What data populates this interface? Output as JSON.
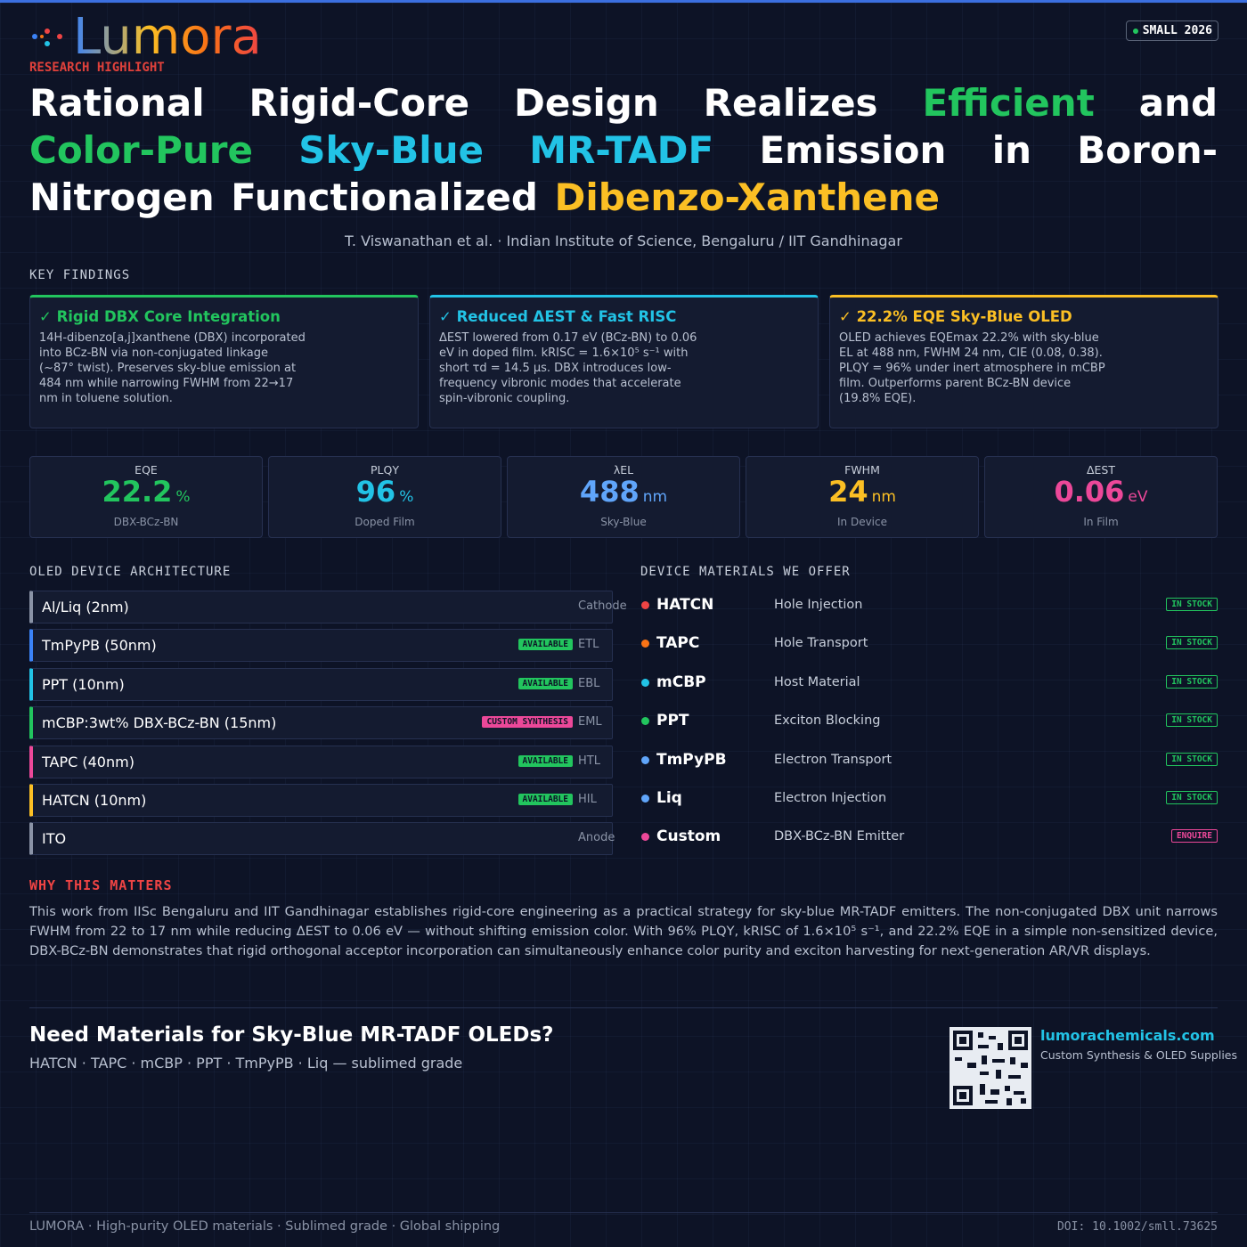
{
  "header": {
    "logo": "Lumora",
    "tagline": "RESEARCH HIGHLIGHT",
    "badge": "SMALL 2026"
  },
  "title": {
    "parts": [
      {
        "text": "Rational Rigid-Core Design Realizes",
        "color": "#ffffff"
      },
      {
        "text": "Efficient",
        "color": "#22c55e"
      },
      {
        "text": "and",
        "color": "#ffffff"
      },
      {
        "text": "Color-Pure",
        "color": "#22c55e"
      },
      {
        "text": "Sky-Blue MR-TADF",
        "color": "#22c3e6"
      },
      {
        "text": "Emission in Boron-Nitrogen Functionalized",
        "color": "#ffffff"
      },
      {
        "text": "Dibenzo-Xanthene",
        "color": "#fbbf24"
      }
    ]
  },
  "authors": "T. Viswanathan et al. · Indian Institute of Science, Bengaluru / IIT Gandhinagar",
  "key_findings": {
    "label": "KEY FINDINGS",
    "cards": [
      {
        "title": "✓ Rigid DBX Core Integration",
        "color": "#22c55e",
        "body": "14H-dibenzo[a,j]xanthene (DBX) incorporated into BCz-BN via non-conjugated linkage (~87° twist). Preserves sky-blue emission at 484 nm while narrowing FWHM from 22→17 nm in toluene solution."
      },
      {
        "title": "✓ Reduced ΔEST & Fast RISC",
        "color": "#22c3e6",
        "body": "ΔEST lowered from 0.17 eV (BCz-BN) to 0.06 eV in doped film. kRISC = 1.6×10⁵ s⁻¹ with short τd = 14.5 µs. DBX introduces low-frequency vibronic modes that accelerate spin-vibronic coupling."
      },
      {
        "title": "✓ 22.2% EQE Sky-Blue OLED",
        "color": "#fbbf24",
        "body": "OLED achieves EQEmax 22.2% with sky-blue EL at 488 nm, FWHM 24 nm, CIE (0.08, 0.38). PLQY = 96% under inert atmosphere in mCBP film. Outperforms parent BCz-BN device (19.8% EQE)."
      }
    ]
  },
  "metrics": [
    {
      "label": "EQE",
      "value": "22.2",
      "unit": "%",
      "sub": "DBX-BCz-BN",
      "color": "#22c55e"
    },
    {
      "label": "PLQY",
      "value": "96",
      "unit": "%",
      "sub": "Doped Film",
      "color": "#22c3e6"
    },
    {
      "label": "λEL",
      "value": "488",
      "unit": "nm",
      "sub": "Sky-Blue",
      "color": "#60a5fa"
    },
    {
      "label": "FWHM",
      "value": "24",
      "unit": "nm",
      "sub": "In Device",
      "color": "#fbbf24"
    },
    {
      "label": "ΔEST",
      "value": "0.06",
      "unit": "eV",
      "sub": "In Film",
      "color": "#ec4899"
    }
  ],
  "architecture": {
    "label": "OLED DEVICE ARCHITECTURE",
    "layers": [
      {
        "name": "Al/Liq (2nm)",
        "role": "Cathode",
        "color": "#8a93a6"
      },
      {
        "name": "TmPyPB (50nm)",
        "tag": "AVAILABLE",
        "tag_color": "#22c55e",
        "role": "ETL",
        "color": "#3b82f6"
      },
      {
        "name": "PPT (10nm)",
        "tag": "AVAILABLE",
        "tag_color": "#22c55e",
        "role": "EBL",
        "color": "#22c3e6"
      },
      {
        "name": "mCBP:3wt% DBX-BCz-BN (15nm)",
        "tag": "CUSTOM SYNTHESIS",
        "tag_color": "#ec4899",
        "role": "EML",
        "color": "#22c55e"
      },
      {
        "name": "TAPC (40nm)",
        "tag": "AVAILABLE",
        "tag_color": "#22c55e",
        "role": "HTL",
        "color": "#ec4899"
      },
      {
        "name": "HATCN (10nm)",
        "tag": "AVAILABLE",
        "tag_color": "#22c55e",
        "role": "HIL",
        "color": "#fbbf24"
      },
      {
        "name": "ITO",
        "role": "Anode",
        "color": "#8a93a6"
      }
    ]
  },
  "materials": {
    "label": "DEVICE MATERIALS WE OFFER",
    "items": [
      {
        "name": "HATCN",
        "use": "Hole Injection",
        "status": "IN STOCK",
        "color": "#ef4444",
        "status_color": "#22c55e"
      },
      {
        "name": "TAPC",
        "use": "Hole Transport",
        "status": "IN STOCK",
        "color": "#f97316",
        "status_color": "#22c55e"
      },
      {
        "name": "mCBP",
        "use": "Host Material",
        "status": "IN STOCK",
        "color": "#22c3e6",
        "status_color": "#22c55e"
      },
      {
        "name": "PPT",
        "use": "Exciton Blocking",
        "status": "IN STOCK",
        "color": "#22c55e",
        "status_color": "#22c55e"
      },
      {
        "name": "TmPyPB",
        "use": "Electron Transport",
        "status": "IN STOCK",
        "color": "#60a5fa",
        "status_color": "#22c55e"
      },
      {
        "name": "Liq",
        "use": "Electron Injection",
        "status": "IN STOCK",
        "color": "#60a5fa",
        "status_color": "#22c55e"
      },
      {
        "name": "Custom",
        "use": "DBX-BCz-BN Emitter",
        "status": "ENQUIRE",
        "color": "#ec4899",
        "status_color": "#ec4899"
      }
    ]
  },
  "why": {
    "label": "WHY THIS MATTERS",
    "text": "This work from IISc Bengaluru and IIT Gandhinagar establishes rigid-core engineering as a practical strategy for sky-blue MR-TADF emitters. The non-conjugated DBX unit narrows FWHM from 22 to 17 nm while reducing ΔEST to 0.06 eV — without shifting emission color. With 96% PLQY, kRISC of 1.6×10⁵ s⁻¹, and 22.2% EQE in a simple non-sensitized device, DBX-BCz-BN demonstrates that rigid orthogonal acceptor incorporation can simultaneously enhance color purity and exciton harvesting for next-generation AR/VR displays."
  },
  "cta": {
    "title": "Need Materials for Sky-Blue MR-TADF OLEDs?",
    "sub": "HATCN · TAPC · mCBP · PPT · TmPyPB · Liq — sublimed grade",
    "url": "lumorachemicals.com",
    "url_sub": "Custom Synthesis & OLED Supplies"
  },
  "footer": {
    "left": "LUMORA · High-purity OLED materials · Sublimed grade · Global shipping",
    "doi": "DOI: 10.1002/smll.73625"
  }
}
